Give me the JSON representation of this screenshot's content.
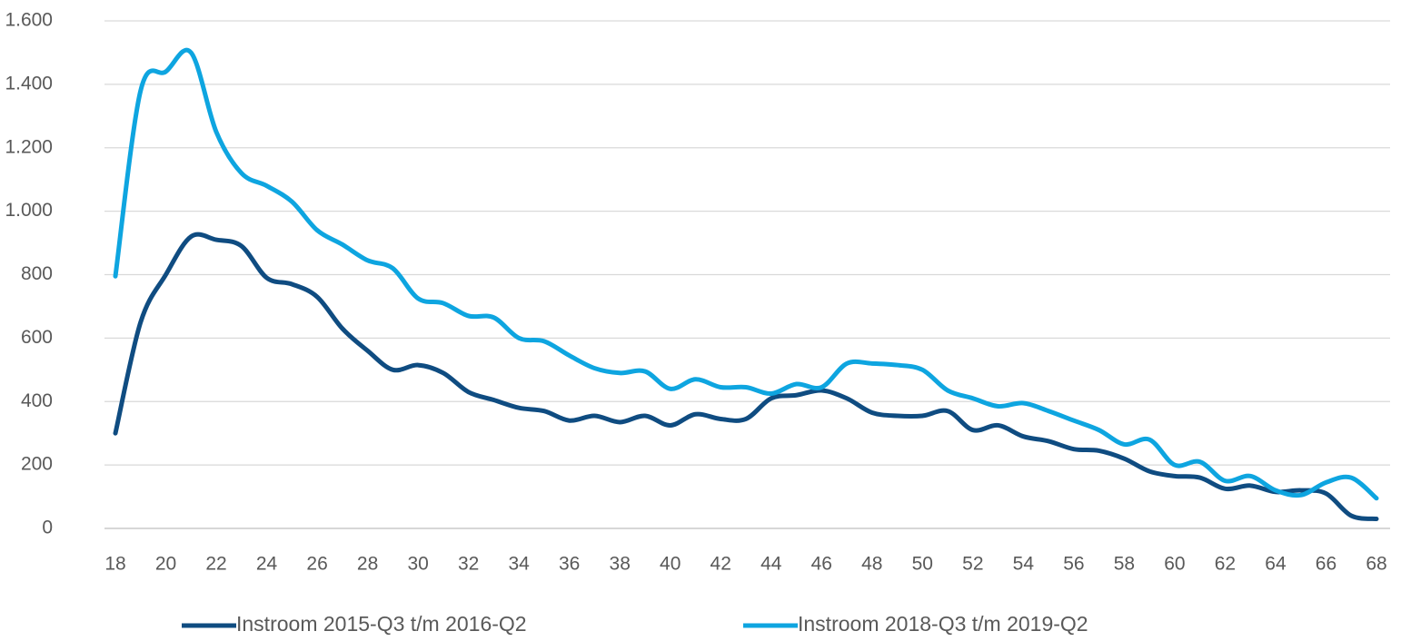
{
  "chart_data": {
    "type": "line",
    "x": [
      18,
      19,
      20,
      21,
      22,
      23,
      24,
      25,
      26,
      27,
      28,
      29,
      30,
      31,
      32,
      33,
      34,
      35,
      36,
      37,
      38,
      39,
      40,
      41,
      42,
      43,
      44,
      45,
      46,
      47,
      48,
      49,
      50,
      51,
      52,
      53,
      54,
      55,
      56,
      57,
      58,
      59,
      60,
      61,
      62,
      63,
      64,
      65,
      66,
      67,
      68
    ],
    "series": [
      {
        "name": "Instroom 2015-Q3 t/m 2016-Q2",
        "color": "#0f4c81",
        "values": [
          300,
          650,
          800,
          920,
          910,
          890,
          790,
          770,
          730,
          630,
          560,
          500,
          515,
          490,
          430,
          405,
          380,
          370,
          340,
          355,
          335,
          355,
          325,
          360,
          345,
          345,
          410,
          420,
          435,
          410,
          365,
          355,
          355,
          370,
          310,
          325,
          290,
          275,
          250,
          245,
          220,
          180,
          165,
          160,
          125,
          135,
          115,
          120,
          110,
          40,
          30
        ]
      },
      {
        "name": "Instroom 2018-Q3 t/m 2019-Q2",
        "color": "#0ea5e0",
        "values": [
          795,
          1380,
          1440,
          1500,
          1250,
          1120,
          1080,
          1030,
          940,
          895,
          845,
          820,
          725,
          710,
          670,
          665,
          600,
          590,
          545,
          505,
          490,
          495,
          440,
          470,
          445,
          445,
          425,
          455,
          445,
          520,
          520,
          515,
          500,
          435,
          410,
          385,
          395,
          370,
          340,
          310,
          265,
          280,
          200,
          210,
          150,
          165,
          120,
          105,
          145,
          160,
          95
        ]
      }
    ],
    "xlim": [
      18,
      68
    ],
    "xticks": [
      18,
      20,
      22,
      24,
      26,
      28,
      30,
      32,
      34,
      36,
      38,
      40,
      42,
      44,
      46,
      48,
      50,
      52,
      54,
      56,
      58,
      60,
      62,
      64,
      66,
      68
    ],
    "ylim": [
      0,
      1600
    ],
    "yticks": [
      0,
      200,
      400,
      600,
      800,
      {
        "value": 1000,
        "label": "1.000"
      },
      {
        "value": 1200,
        "label": "1.200"
      },
      {
        "value": 1400,
        "label": "1.400"
      },
      {
        "value": 1600,
        "label": "1.600"
      }
    ],
    "grid": true,
    "legend": "bottom"
  }
}
